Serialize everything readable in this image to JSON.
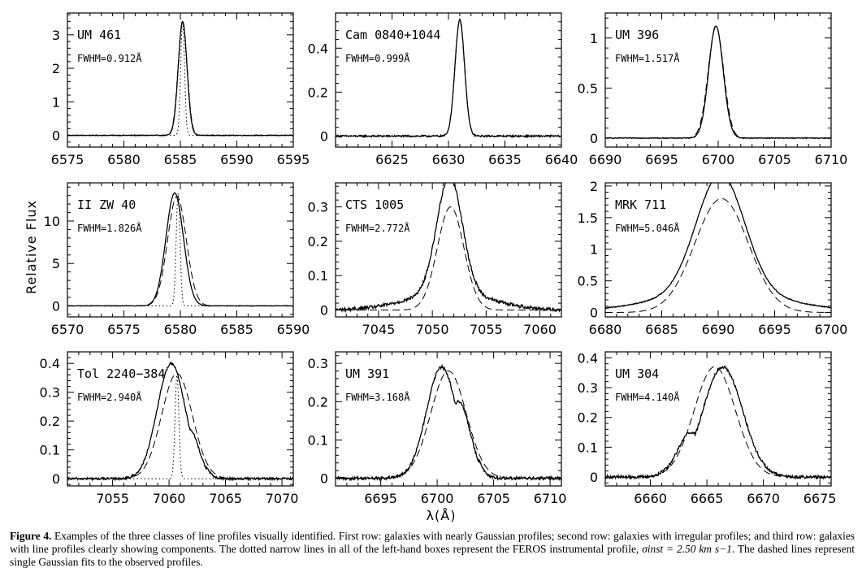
{
  "figure": {
    "y_axis_title": "Relative Flux",
    "x_axis_title": "λ(Å)"
  },
  "caption": {
    "label": "Figure 4.",
    "text_part1": "Examples of the three classes of line profiles visually identified. First row: galaxies with nearly Gaussian profiles; second row: galaxies with irregular profiles; and third row: galaxies with line profiles clearly showing components. The dotted narrow lines in all of the left-hand boxes represent the FEROS instrumental profile,",
    "math": "σinst = 2.50 km s−1",
    "text_part2": ". The dashed lines represent single Gaussian fits to the observed profiles."
  },
  "chart_data": [
    {
      "type": "line",
      "name": "UM 461",
      "fwhm": "FWHM=0.912Å",
      "xlim": [
        6575,
        6595
      ],
      "ylim": [
        -0.35,
        3.65
      ],
      "xticks": [
        6575,
        6580,
        6585,
        6590,
        6595
      ],
      "yticks": [
        0,
        1,
        2,
        3
      ],
      "profile": {
        "center": 6585.2,
        "peak": 3.4,
        "fwhm": 0.912,
        "noise": 0.012
      },
      "gaussian_fit": {
        "center": 6585.2,
        "peak": 3.38,
        "fwhm": 0.95
      },
      "instrumental": {
        "center": 6585.2,
        "peak": 3.4,
        "fwhm": 0.4
      }
    },
    {
      "type": "line",
      "name": "Cam 0840+1044",
      "fwhm": "FWHM=0.999Å",
      "xlim": [
        6620,
        6640
      ],
      "ylim": [
        -0.05,
        0.56
      ],
      "xticks": [
        6625,
        6630,
        6635,
        6640
      ],
      "yticks": [
        0,
        0.2,
        0.4
      ],
      "profile": {
        "center": 6631.0,
        "peak": 0.53,
        "fwhm": 0.999,
        "noise": 0.004
      },
      "gaussian_fit": {
        "center": 6631.0,
        "peak": 0.525,
        "fwhm": 1.0
      }
    },
    {
      "type": "line",
      "name": "UM 396",
      "fwhm": "FWHM=1.517Å",
      "xlim": [
        6690,
        6710
      ],
      "ylim": [
        -0.09,
        1.25
      ],
      "xticks": [
        6690,
        6695,
        6700,
        6705,
        6710
      ],
      "yticks": [
        0,
        0.5,
        1
      ],
      "profile": {
        "center": 6699.8,
        "peak": 1.12,
        "fwhm": 1.517,
        "noise": 0.004
      },
      "gaussian_fit": {
        "center": 6699.8,
        "peak": 1.11,
        "fwhm": 1.62
      }
    },
    {
      "type": "line",
      "name": "II ZW 40",
      "fwhm": "FWHM=1.826Å",
      "xlim": [
        6570,
        6590
      ],
      "ylim": [
        -1.3,
        14.5
      ],
      "xticks": [
        6570,
        6575,
        6580,
        6585,
        6590
      ],
      "yticks": [
        0,
        5,
        10
      ],
      "profile": {
        "center": 6579.5,
        "peak": 13.3,
        "fwhm": 1.826,
        "noise": 0.03
      },
      "gaussian_fit": {
        "center": 6579.7,
        "peak": 12.9,
        "fwhm": 1.95
      },
      "instrumental": {
        "center": 6579.8,
        "peak": 13.3,
        "fwhm": 0.4
      }
    },
    {
      "type": "line",
      "name": "CTS 1005",
      "fwhm": "FWHM=2.772Å",
      "xlim": [
        7041,
        7062
      ],
      "ylim": [
        -0.02,
        0.37
      ],
      "xticks": [
        7045,
        7050,
        7055,
        7060
      ],
      "yticks": [
        0,
        0.1,
        0.2,
        0.3
      ],
      "profile": {
        "center": 7051.6,
        "peak": 0.34,
        "fwhm": 2.772,
        "noise": 0.005
      },
      "gaussian_fit": {
        "center": 7051.7,
        "peak": 0.3,
        "fwhm": 2.9
      }
    },
    {
      "type": "line",
      "name": "MRK 711",
      "fwhm": "FWHM=5.046Å",
      "xlim": [
        6680,
        6700
      ],
      "ylim": [
        -0.07,
        2.05
      ],
      "xticks": [
        6680,
        6685,
        6690,
        6695,
        6700
      ],
      "yticks": [
        0,
        0.5,
        1,
        1.5,
        2
      ],
      "profile": {
        "center": 6690.2,
        "peak": 1.88,
        "fwhm": 5.046,
        "noise": 0.008
      },
      "gaussian_fit": {
        "center": 6690.3,
        "peak": 1.8,
        "fwhm": 5.6
      }
    },
    {
      "type": "line",
      "name": "Tol 2240−384",
      "fwhm": "FWHM=2.940Å",
      "xlim": [
        7051,
        7071
      ],
      "ylim": [
        -0.025,
        0.44
      ],
      "xticks": [
        7055,
        7060,
        7065,
        7070
      ],
      "yticks": [
        0,
        0.1,
        0.2,
        0.3,
        0.4
      ],
      "profile": {
        "center": 7060.2,
        "peak": 0.4,
        "fwhm": 2.94,
        "noise": 0.004,
        "component": {
          "center": 7061.8,
          "peak": 0.17,
          "fwhm": 2.0
        }
      },
      "gaussian_fit": {
        "center": 7060.7,
        "peak": 0.365,
        "fwhm": 3.2
      },
      "instrumental": {
        "center": 7060.7,
        "peak": 0.36,
        "fwhm": 0.4
      }
    },
    {
      "type": "line",
      "name": "UM 391",
      "fwhm": "FWHM=3.168Å",
      "xlim": [
        6691,
        6711
      ],
      "ylim": [
        -0.02,
        0.33
      ],
      "xticks": [
        6695,
        6700,
        6705,
        6710
      ],
      "yticks": [
        0,
        0.1,
        0.2,
        0.3
      ],
      "profile": {
        "center": 6700.4,
        "peak": 0.29,
        "fwhm": 3.168,
        "noise": 0.004,
        "component": {
          "center": 6701.9,
          "peak": 0.2,
          "fwhm": 2.4
        }
      },
      "gaussian_fit": {
        "center": 6701.0,
        "peak": 0.28,
        "fwhm": 3.7
      }
    },
    {
      "type": "line",
      "name": "UM 304",
      "fwhm": "FWHM=4.140Å",
      "xlim": [
        6656,
        6676
      ],
      "ylim": [
        -0.03,
        0.42
      ],
      "xticks": [
        6660,
        6665,
        6670,
        6675
      ],
      "yticks": [
        0,
        0.1,
        0.2,
        0.3,
        0.4
      ],
      "profile": {
        "center": 6666.4,
        "peak": 0.37,
        "fwhm": 4.14,
        "noise": 0.005,
        "component": {
          "center": 6663.6,
          "peak": 0.15,
          "fwhm": 2.8
        }
      },
      "gaussian_fit": {
        "center": 6665.7,
        "peak": 0.37,
        "fwhm": 4.3
      }
    }
  ]
}
